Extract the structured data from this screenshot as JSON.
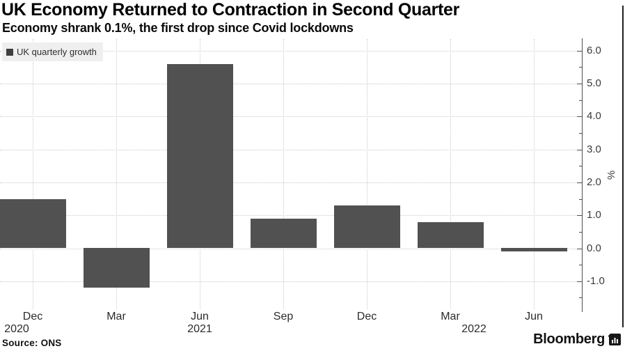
{
  "header": {
    "title": "UK Economy Returned to Contraction in Second Quarter",
    "subtitle": "Economy shrank 0.1%, the first drop since Covid lockdowns"
  },
  "legend": {
    "label": "UK quarterly growth",
    "swatch_color": "#3f3f3f"
  },
  "footer": {
    "source": "Source: ONS",
    "brand": "Bloomberg"
  },
  "chart_data": {
    "type": "bar",
    "title": "UK Economy Returned to Contraction in Second Quarter",
    "subtitle": "Economy shrank 0.1%, the first drop since Covid lockdowns",
    "series_name": "UK quarterly growth",
    "categories": [
      "Dec 2020",
      "Mar 2021",
      "Jun 2021",
      "Sep 2021",
      "Dec 2021",
      "Mar 2022",
      "Jun 2022"
    ],
    "x_tick_labels": [
      "Dec",
      "Mar",
      "Jun",
      "Sep",
      "Dec",
      "Mar",
      "Jun"
    ],
    "x_year_labels": [
      {
        "index": 0,
        "label": "2020"
      },
      {
        "index": 2,
        "label": "2021"
      },
      {
        "index": 5,
        "label": "2022"
      }
    ],
    "values": [
      1.5,
      -1.2,
      5.6,
      0.9,
      1.3,
      0.8,
      -0.1
    ],
    "xlabel": "",
    "ylabel": "%",
    "y_ticks": [
      6.0,
      5.0,
      4.0,
      3.0,
      2.0,
      1.0,
      0.0,
      -1.0
    ],
    "y_minor_tick_step": 0.5,
    "ylim": [
      -1.6,
      6.3
    ],
    "grid": true,
    "legend_position": "top-left",
    "y_axis_side": "right",
    "bar_color": "#515151",
    "gridline_color": "#c9c9c9",
    "source": "Source: ONS",
    "brand": "Bloomberg"
  }
}
